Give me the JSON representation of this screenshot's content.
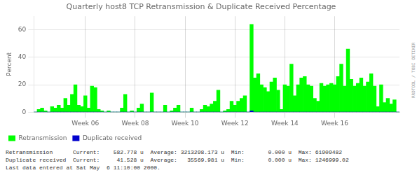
{
  "chart_data": {
    "type": "bar",
    "title": "Quarterly host8 TCP Retransmission & Duplicate Received Percentage",
    "ylabel": "Percent",
    "categories": [
      null,
      null,
      null,
      null,
      null,
      null,
      null,
      null,
      null,
      null,
      null,
      null,
      null,
      null,
      null,
      "Week 06",
      null,
      null,
      null,
      null,
      null,
      null,
      null,
      null,
      null,
      null,
      null,
      null,
      null,
      null,
      "Week 08",
      null,
      null,
      null,
      null,
      null,
      null,
      null,
      null,
      null,
      null,
      null,
      null,
      null,
      null,
      "Week 10",
      null,
      null,
      null,
      null,
      null,
      null,
      null,
      null,
      null,
      null,
      null,
      null,
      null,
      null,
      "Week 12",
      null,
      null,
      null,
      null,
      null,
      null,
      null,
      null,
      null,
      null,
      null,
      null,
      null,
      null,
      "Week 14",
      null,
      null,
      null,
      null,
      null,
      null,
      null,
      null,
      null,
      null,
      null,
      null,
      null,
      null,
      "Week 16",
      null,
      null,
      null,
      null,
      null,
      null,
      null,
      null,
      null,
      null,
      null,
      null,
      null,
      null,
      null,
      null,
      null,
      null,
      null
    ],
    "series": [
      {
        "name": "Retransmission",
        "color": "#00ff00",
        "values": [
          0,
          2,
          3,
          1,
          0,
          4,
          3,
          5,
          3,
          10,
          5,
          13,
          20,
          5,
          4,
          12,
          3,
          19,
          18,
          2,
          1,
          0,
          1,
          0,
          0,
          0,
          3,
          13,
          0,
          1,
          0,
          3,
          6,
          0,
          0,
          14,
          0,
          0,
          0,
          5,
          0,
          1,
          3,
          5,
          0,
          0,
          0,
          3,
          0,
          0,
          2,
          5,
          4,
          6,
          8,
          16,
          0,
          1,
          2,
          8,
          5,
          8,
          10,
          12,
          0,
          64,
          25,
          28,
          20,
          18,
          15,
          22,
          25,
          16,
          2,
          20,
          19,
          35,
          12,
          20,
          25,
          26,
          20,
          19,
          10,
          8,
          21,
          19,
          20,
          21,
          20,
          26,
          35,
          19,
          46,
          24,
          19,
          21,
          25,
          19,
          22,
          28,
          19,
          4,
          20,
          7,
          10,
          6,
          9,
          0
        ]
      },
      {
        "name": "Duplicate received",
        "color": "#0000cd",
        "values": [
          0,
          0,
          0,
          0,
          0,
          0,
          0,
          0,
          0,
          0,
          0,
          0,
          0,
          0,
          0,
          0,
          0,
          0,
          0,
          0,
          0,
          0,
          0,
          0,
          0,
          0,
          0,
          0,
          0,
          0,
          0,
          0,
          0,
          0,
          0,
          0,
          0,
          0,
          0,
          0,
          0,
          0,
          0,
          0,
          0,
          0,
          0,
          0,
          0,
          0,
          0,
          0,
          0,
          0,
          0,
          0,
          0,
          0,
          0,
          0,
          0,
          0,
          0,
          0,
          0,
          1,
          0,
          0,
          0,
          0,
          0,
          0,
          0,
          0,
          0,
          0,
          0,
          0,
          0,
          0,
          0,
          0,
          0,
          0,
          0,
          0,
          0,
          0,
          0,
          0,
          0,
          0,
          0,
          0,
          0,
          0,
          0,
          0,
          0,
          0,
          0,
          0,
          0,
          0,
          0,
          0,
          0,
          0,
          0,
          0
        ]
      }
    ],
    "ylim": [
      0,
      70
    ],
    "yticks": [
      0,
      20,
      40,
      60
    ],
    "grid": true,
    "legend": "bottom",
    "annotations": [
      "Retransmission      Current:    582.778 u  Average: 3213298.173 u  Min:       0.000 u  Max: 61909482",
      "Duplicate received  Current:     41.528 u  Average:   35569.981 u  Min:       0.000 u  Max: 1246999.02",
      "Last data entered at Sat May  6 11:10:00 2000."
    ],
    "watermark": "RRDTOOL / TOBI OETIKER"
  }
}
